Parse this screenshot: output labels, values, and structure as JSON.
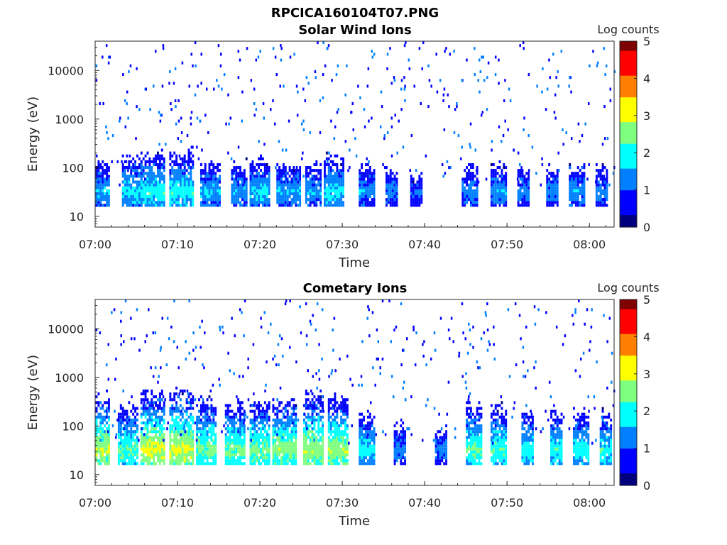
{
  "figure_title": "RPCICA160104T07.PNG",
  "colormap": [
    "#00007f",
    "#0000ff",
    "#007fff",
    "#00ffff",
    "#7fff7f",
    "#ffff00",
    "#ff7f00",
    "#ff0000",
    "#7f0000"
  ],
  "chart_data": [
    {
      "type": "heatmap",
      "title": "Solar Wind Ions",
      "xlabel": "Time",
      "ylabel": "Energy (eV)",
      "x_ticks": [
        "07:00",
        "07:10",
        "07:20",
        "07:30",
        "07:40",
        "07:50",
        "08:00"
      ],
      "x_range_minutes": [
        0,
        63
      ],
      "y_ticks": [
        "10",
        "100",
        "1000",
        "10000"
      ],
      "y_scale": "log",
      "ylim": [
        6,
        40000
      ],
      "colorbar_label": "Log counts",
      "colorbar_ticks": [
        "0",
        "1",
        "2",
        "3",
        "4",
        "5"
      ],
      "colorbar_range": [
        0,
        5
      ],
      "low_energy_bursts": [
        {
          "t": 0.8,
          "w": 2.0,
          "level": 1.6
        },
        {
          "t": 4.5,
          "w": 2.5,
          "level": 1.8
        },
        {
          "t": 7.0,
          "w": 3.0,
          "level": 2.0
        },
        {
          "t": 10.5,
          "w": 3.0,
          "level": 2.0
        },
        {
          "t": 14.0,
          "w": 2.5,
          "level": 1.6
        },
        {
          "t": 17.5,
          "w": 2.0,
          "level": 1.5
        },
        {
          "t": 20.0,
          "w": 2.5,
          "level": 1.7
        },
        {
          "t": 23.5,
          "w": 3.0,
          "level": 1.5
        },
        {
          "t": 26.5,
          "w": 2.0,
          "level": 1.5
        },
        {
          "t": 29.0,
          "w": 2.5,
          "level": 1.8
        },
        {
          "t": 33.0,
          "w": 2.0,
          "level": 1.4
        },
        {
          "t": 36.0,
          "w": 1.5,
          "level": 1.2
        },
        {
          "t": 39.0,
          "w": 1.5,
          "level": 1.0
        },
        {
          "t": 45.5,
          "w": 2.0,
          "level": 1.3
        },
        {
          "t": 49.0,
          "w": 2.0,
          "level": 1.4
        },
        {
          "t": 52.0,
          "w": 1.5,
          "level": 1.3
        },
        {
          "t": 55.5,
          "w": 1.5,
          "level": 1.3
        },
        {
          "t": 58.5,
          "w": 2.0,
          "level": 1.4
        },
        {
          "t": 61.5,
          "w": 1.5,
          "level": 1.3
        }
      ]
    },
    {
      "type": "heatmap",
      "title": "Cometary Ions",
      "xlabel": "Time",
      "ylabel": "Energy (eV)",
      "x_ticks": [
        "07:00",
        "07:10",
        "07:20",
        "07:30",
        "07:40",
        "07:50",
        "08:00"
      ],
      "x_range_minutes": [
        0,
        63
      ],
      "y_ticks": [
        "10",
        "100",
        "1000",
        "10000"
      ],
      "y_scale": "log",
      "ylim": [
        6,
        40000
      ],
      "colorbar_label": "Log counts",
      "colorbar_ticks": [
        "0",
        "1",
        "2",
        "3",
        "4",
        "5"
      ],
      "colorbar_range": [
        0,
        5
      ],
      "low_energy_bursts": [
        {
          "t": 0.8,
          "w": 2.0,
          "level": 2.8
        },
        {
          "t": 4.0,
          "w": 2.5,
          "level": 2.3
        },
        {
          "t": 7.0,
          "w": 3.0,
          "level": 3.0
        },
        {
          "t": 10.5,
          "w": 3.0,
          "level": 3.0
        },
        {
          "t": 13.5,
          "w": 2.5,
          "level": 2.5
        },
        {
          "t": 17.0,
          "w": 2.5,
          "level": 2.4
        },
        {
          "t": 20.0,
          "w": 2.5,
          "level": 2.5
        },
        {
          "t": 23.0,
          "w": 3.0,
          "level": 2.6
        },
        {
          "t": 26.5,
          "w": 2.5,
          "level": 2.8
        },
        {
          "t": 29.5,
          "w": 2.5,
          "level": 2.7
        },
        {
          "t": 33.0,
          "w": 2.0,
          "level": 1.9
        },
        {
          "t": 37.0,
          "w": 1.5,
          "level": 1.3
        },
        {
          "t": 42.0,
          "w": 1.5,
          "level": 1.2
        },
        {
          "t": 46.0,
          "w": 2.0,
          "level": 2.3
        },
        {
          "t": 49.0,
          "w": 2.0,
          "level": 2.2
        },
        {
          "t": 52.5,
          "w": 1.5,
          "level": 2.0
        },
        {
          "t": 56.0,
          "w": 1.5,
          "level": 2.0
        },
        {
          "t": 59.0,
          "w": 2.0,
          "level": 2.0
        },
        {
          "t": 62.0,
          "w": 1.5,
          "level": 2.0
        }
      ]
    }
  ]
}
